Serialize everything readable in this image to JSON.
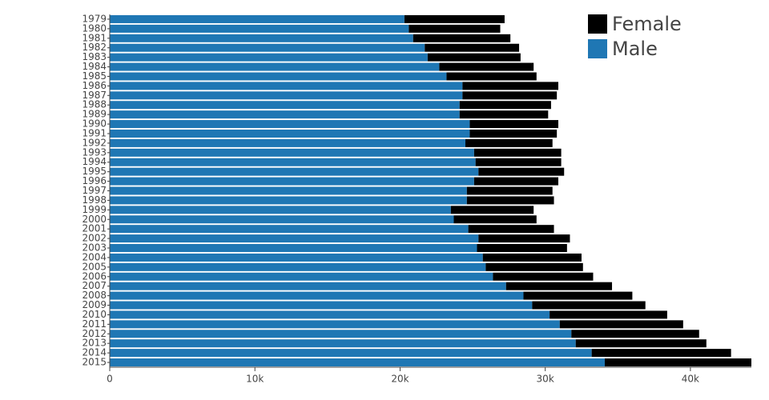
{
  "chart_data": {
    "type": "stacked-horizontal-bar",
    "categories": [
      "1979",
      "1980",
      "1981",
      "1982",
      "1983",
      "1984",
      "1985",
      "1986",
      "1987",
      "1988",
      "1989",
      "1990",
      "1991",
      "1992",
      "1993",
      "1994",
      "1995",
      "1996",
      "1997",
      "1998",
      "1999",
      "2000",
      "2001",
      "2002",
      "2003",
      "2004",
      "2005",
      "2006",
      "2007",
      "2008",
      "2009",
      "2010",
      "2011",
      "2012",
      "2013",
      "2014",
      "2015"
    ],
    "series": [
      {
        "name": "Female",
        "color": "#000000",
        "values": [
          6900,
          6300,
          6700,
          6500,
          6400,
          6500,
          6200,
          6600,
          6500,
          6300,
          6100,
          6100,
          6000,
          6000,
          6000,
          5900,
          5900,
          5800,
          5900,
          6000,
          5700,
          5700,
          5900,
          6300,
          6200,
          6800,
          6700,
          6900,
          7300,
          7500,
          7800,
          8100,
          8500,
          8800,
          9000,
          9600,
          10100
        ]
      },
      {
        "name": "Male",
        "color": "#1f77b4",
        "values": [
          20300,
          20600,
          20900,
          21700,
          21900,
          22700,
          23200,
          24300,
          24300,
          24100,
          24100,
          24800,
          24800,
          24500,
          25100,
          25200,
          25400,
          25100,
          24600,
          24600,
          23500,
          23700,
          24700,
          25400,
          25300,
          25700,
          25900,
          26400,
          27300,
          28500,
          29100,
          30300,
          31000,
          31800,
          32100,
          33200,
          34100
        ]
      }
    ],
    "xlim": [
      0,
      44200
    ],
    "xticks": [
      0,
      {
        "value": 10000,
        "label": "10k"
      },
      {
        "value": 20000,
        "label": "20k"
      },
      {
        "value": 30000,
        "label": "30k"
      },
      {
        "value": 40000,
        "label": "40k"
      }
    ],
    "legend": "top-right"
  }
}
